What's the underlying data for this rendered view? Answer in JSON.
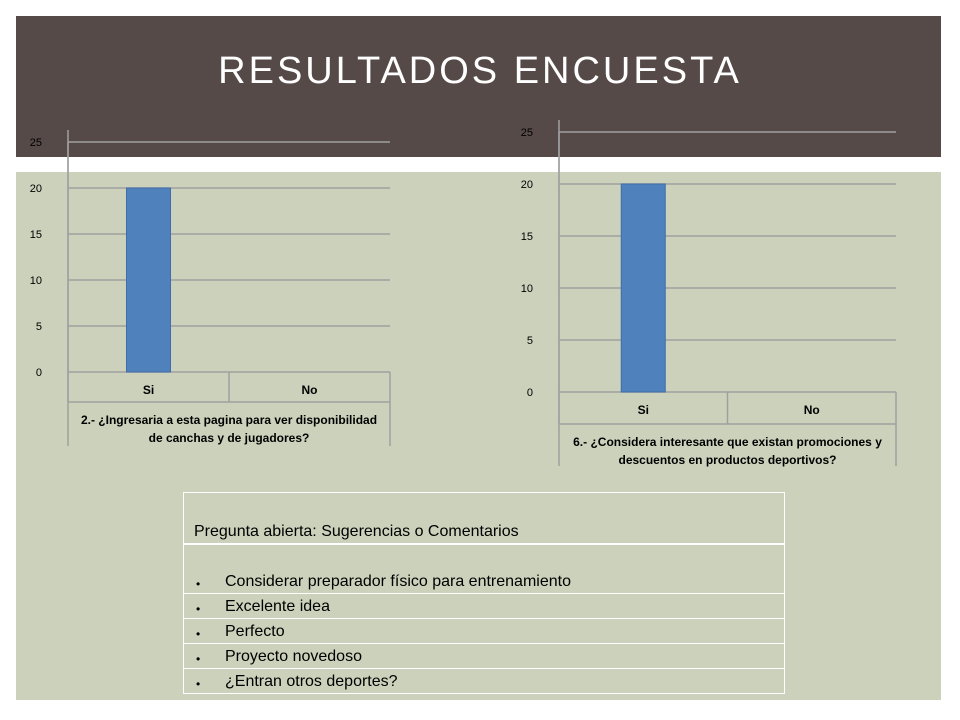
{
  "slide": {
    "title": "RESULTADOS ENCUESTA"
  },
  "colors": {
    "header": "#554a48",
    "content": "#ccd1bb",
    "bar": "#4f81bd",
    "grid": "#a0a0a0"
  },
  "chart_data": [
    {
      "type": "bar",
      "categories": [
        "Si",
        "No"
      ],
      "values": [
        20,
        0
      ],
      "title": "2.- ¿Ingresaria a esta pagina para ver disponibilidad de canchas y de jugadores?",
      "title_lines": [
        "2.- ¿Ingresaria a esta pagina para ver disponibilidad",
        "de canchas y de jugadores?"
      ],
      "xlabel": "",
      "ylabel": "",
      "ylim": [
        0,
        25
      ],
      "yticks": [
        "0",
        "5",
        "10",
        "15",
        "20",
        "25"
      ],
      "grid": true
    },
    {
      "type": "bar",
      "categories": [
        "Si",
        "No"
      ],
      "values": [
        20,
        0
      ],
      "title": "6.- ¿Considera interesante que existan promociones y descuentos en productos deportivos?",
      "title_lines": [
        "6.- ¿Considera interesante que existan promociones y",
        "descuentos en productos deportivos?"
      ],
      "xlabel": "",
      "ylabel": "",
      "ylim": [
        0,
        25
      ],
      "yticks": [
        "0",
        "5",
        "10",
        "15",
        "20",
        "25"
      ],
      "grid": true
    }
  ],
  "comments": {
    "header": "Pregunta abierta: Sugerencias o Comentarios",
    "bullet": "•",
    "items": [
      "Considerar preparador físico para entrenamiento",
      "Excelente  idea",
      "Perfecto",
      "Proyecto novedoso",
      "¿Entran otros deportes?"
    ]
  }
}
